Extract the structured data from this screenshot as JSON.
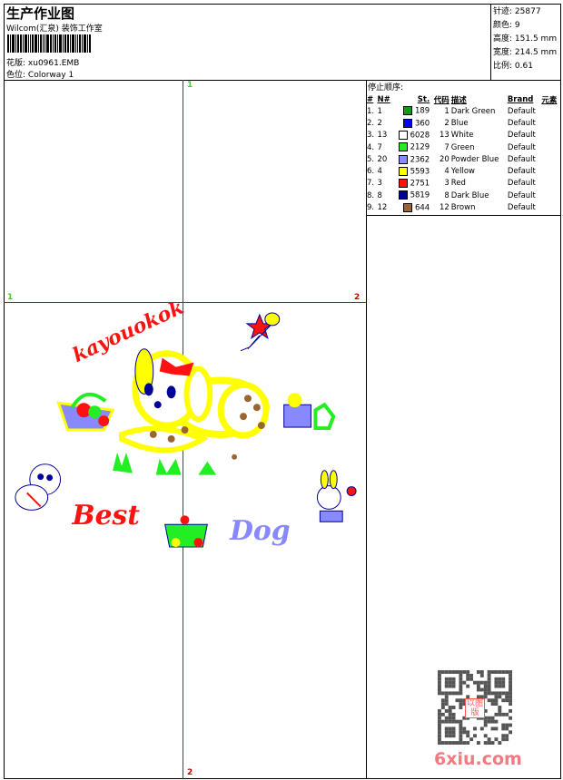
{
  "header": {
    "title": "生产作业图",
    "company": "Wilcom(汇泉) 装饰工作室",
    "design_label": "花版:",
    "design_value": "xu0961.EMB",
    "colorway_label": "色位:",
    "colorway_value": "Colorway 1"
  },
  "stats": [
    {
      "label": "针迹:",
      "value": "25877"
    },
    {
      "label": "颜色:",
      "value": "9"
    },
    {
      "label": "高度:",
      "value": "151.5 mm"
    },
    {
      "label": "宽度:",
      "value": "214.5 mm"
    },
    {
      "label": "比例:",
      "value": "0.61"
    }
  ],
  "grid_labels": {
    "top": "1",
    "left": "1",
    "right": "2",
    "bottom": "2"
  },
  "panel": {
    "stop_sequence_label": "停止顺序:",
    "columns": [
      "#",
      "N#",
      "St.",
      "代码",
      "描述",
      "Brand",
      "元素"
    ],
    "rows": [
      {
        "idx": "1.",
        "n": "1",
        "color": "#119911",
        "st": "189",
        "code": "1",
        "desc": "Dark Green",
        "brand": "Default"
      },
      {
        "idx": "2.",
        "n": "2",
        "color": "#0000ff",
        "st": "360",
        "code": "2",
        "desc": "Blue",
        "brand": "Default"
      },
      {
        "idx": "3.",
        "n": "13",
        "color": "#ffffff",
        "st": "6028",
        "code": "13",
        "desc": "White",
        "brand": "Default"
      },
      {
        "idx": "4.",
        "n": "7",
        "color": "#22ee22",
        "st": "2129",
        "code": "7",
        "desc": "Green",
        "brand": "Default"
      },
      {
        "idx": "5.",
        "n": "20",
        "color": "#8888ff",
        "st": "2362",
        "code": "20",
        "desc": "Powder Blue",
        "brand": "Default"
      },
      {
        "idx": "6.",
        "n": "4",
        "color": "#ffff00",
        "st": "5593",
        "code": "4",
        "desc": "Yellow",
        "brand": "Default"
      },
      {
        "idx": "7.",
        "n": "3",
        "color": "#ff1111",
        "st": "2751",
        "code": "3",
        "desc": "Red",
        "brand": "Default"
      },
      {
        "idx": "8.",
        "n": "8",
        "color": "#000099",
        "st": "5819",
        "code": "8",
        "desc": "Dark Blue",
        "brand": "Default"
      },
      {
        "idx": "9.",
        "n": "12",
        "color": "#996633",
        "st": "644",
        "code": "12",
        "desc": "Brown",
        "brand": "Default"
      }
    ]
  },
  "design": {
    "text_top": "kayouokok",
    "text_best": "Best",
    "text_dog": "Dog"
  },
  "watermark": {
    "text": "6xiu.com",
    "seal": "以图版"
  }
}
